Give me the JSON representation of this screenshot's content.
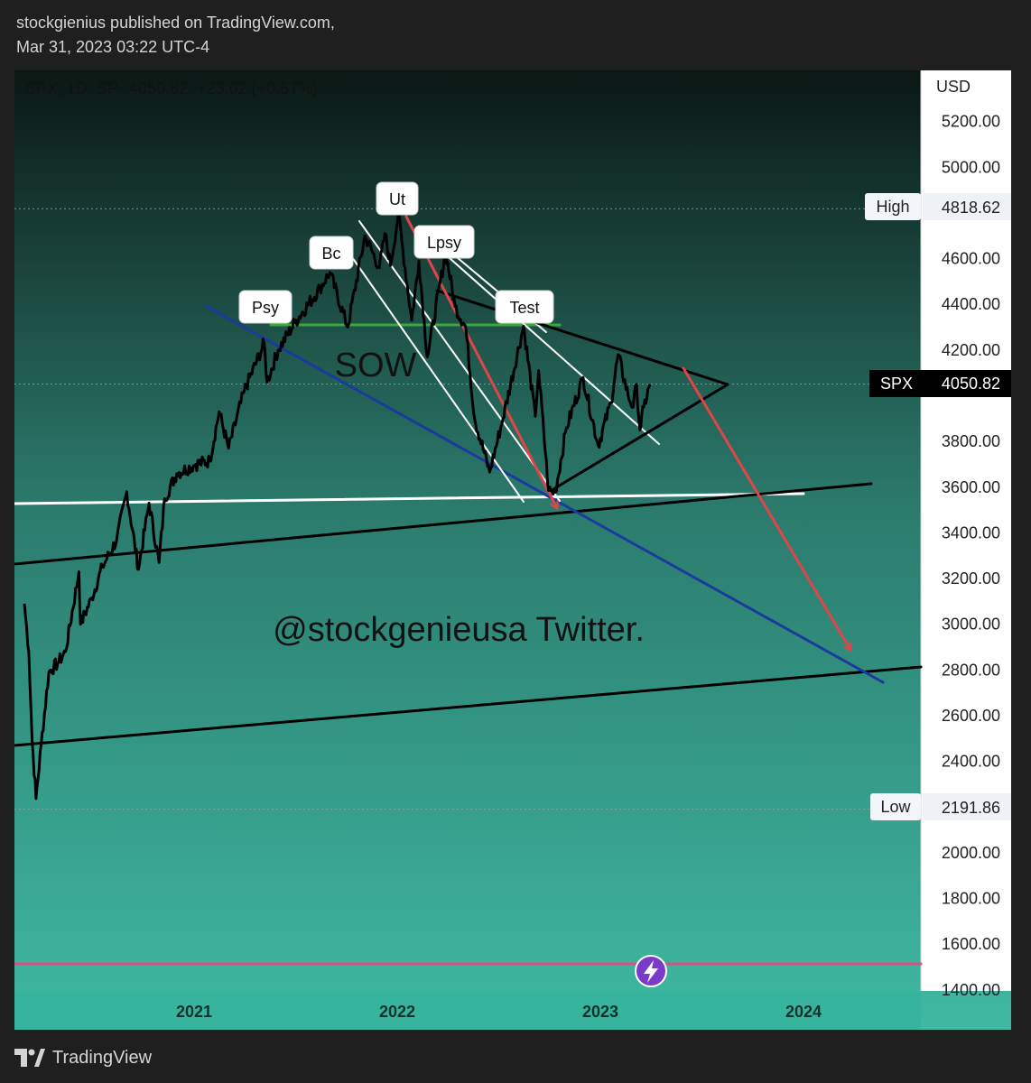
{
  "header": {
    "line1": "stockgienius published on TradingView.com,",
    "line2": "Mar 31, 2023 03:22 UTC-4"
  },
  "symbol_info": {
    "symbol": "SPX, 1D, SP",
    "price": "4050.82",
    "change": "+23.02 (+0.57%)"
  },
  "price_axis": {
    "currency": "USD",
    "ticks": [
      1400,
      1600,
      1800,
      2000,
      2200,
      2400,
      2600,
      2800,
      3000,
      3200,
      3400,
      3600,
      3800,
      4000,
      4200,
      4400,
      4600,
      4800,
      5000,
      5200
    ],
    "tick_labels": [
      "1400.00",
      "1600.00",
      "1800.00",
      "2000.00",
      "",
      "2400.00",
      "2600.00",
      "2800.00",
      "3000.00",
      "3200.00",
      "3400.00",
      "3600.00",
      "3800.00",
      "",
      "4200.00",
      "4400.00",
      "4600.00",
      "",
      "5000.00",
      "5200.00"
    ]
  },
  "time_axis": {
    "labels": [
      "2021",
      "2022",
      "2023",
      "2024"
    ]
  },
  "markers": {
    "high": {
      "label": "High",
      "value": "4818.62"
    },
    "low": {
      "label": "Low",
      "value": "2191.86"
    },
    "last": {
      "label": "SPX",
      "value": "4050.82"
    }
  },
  "annotations": {
    "wyckoff_labels": [
      "Psy",
      "Bc",
      "Ut",
      "Lpsy",
      "Test"
    ],
    "sow": "SOW",
    "watermark": "@stockgenieusa Twitter."
  },
  "footer": {
    "brand": "TradingView"
  },
  "colors": {
    "bg_top": "#0b1714",
    "bg_bottom": "#3fb9a3",
    "price_line": "#000000",
    "blue_line": "#1a3a9c",
    "red_arrow": "#e0454a",
    "green_line": "#3aa83a",
    "pink_line": "#d9507c"
  },
  "chart_data": {
    "type": "line",
    "title": "SPX, 1D, SP",
    "ylabel": "USD",
    "ylim": [
      1400,
      5300
    ],
    "x_range": [
      "2020-03-01",
      "2024-06-01"
    ],
    "series": [
      {
        "name": "SPX",
        "points": [
          [
            "2020-03-02",
            3090
          ],
          [
            "2020-03-10",
            2880
          ],
          [
            "2020-03-16",
            2490
          ],
          [
            "2020-03-23",
            2237
          ],
          [
            "2020-04-01",
            2470
          ],
          [
            "2020-04-15",
            2790
          ],
          [
            "2020-05-01",
            2830
          ],
          [
            "2020-05-15",
            2880
          ],
          [
            "2020-06-08",
            3230
          ],
          [
            "2020-06-11",
            3000
          ],
          [
            "2020-07-01",
            3115
          ],
          [
            "2020-07-20",
            3250
          ],
          [
            "2020-08-15",
            3370
          ],
          [
            "2020-09-02",
            3580
          ],
          [
            "2020-09-23",
            3240
          ],
          [
            "2020-10-12",
            3530
          ],
          [
            "2020-10-30",
            3270
          ],
          [
            "2020-11-09",
            3550
          ],
          [
            "2020-12-01",
            3660
          ],
          [
            "2021-01-04",
            3700
          ],
          [
            "2021-01-29",
            3715
          ],
          [
            "2021-02-15",
            3930
          ],
          [
            "2021-03-04",
            3770
          ],
          [
            "2021-04-01",
            4020
          ],
          [
            "2021-05-07",
            4230
          ],
          [
            "2021-05-12",
            4060
          ],
          [
            "2021-06-01",
            4200
          ],
          [
            "2021-07-01",
            4320
          ],
          [
            "2021-08-15",
            4470
          ],
          [
            "2021-09-02",
            4540
          ],
          [
            "2021-10-04",
            4300
          ],
          [
            "2021-11-04",
            4700
          ],
          [
            "2021-11-30",
            4560
          ],
          [
            "2021-12-10",
            4710
          ],
          [
            "2021-12-20",
            4570
          ],
          [
            "2022-01-03",
            4796
          ],
          [
            "2022-01-27",
            4330
          ],
          [
            "2022-02-09",
            4590
          ],
          [
            "2022-02-24",
            4170
          ],
          [
            "2022-03-29",
            4630
          ],
          [
            "2022-04-15",
            4390
          ],
          [
            "2022-05-04",
            4300
          ],
          [
            "2022-05-20",
            3900
          ],
          [
            "2022-06-16",
            3666
          ],
          [
            "2022-07-10",
            3900
          ],
          [
            "2022-08-16",
            4305
          ],
          [
            "2022-09-06",
            3910
          ],
          [
            "2022-09-12",
            4110
          ],
          [
            "2022-09-30",
            3585
          ],
          [
            "2022-10-12",
            3577
          ],
          [
            "2022-11-01",
            3860
          ],
          [
            "2022-12-01",
            4080
          ],
          [
            "2022-12-28",
            3783
          ],
          [
            "2023-01-20",
            3970
          ],
          [
            "2023-02-02",
            4180
          ],
          [
            "2023-02-20",
            4000
          ],
          [
            "2023-03-01",
            3950
          ],
          [
            "2023-03-07",
            4050
          ],
          [
            "2023-03-13",
            3850
          ],
          [
            "2023-03-20",
            3950
          ],
          [
            "2023-03-31",
            4050
          ]
        ]
      }
    ],
    "high": 4818.62,
    "low": 2191.86,
    "last": 4050.82,
    "grid": false,
    "legend": "none"
  }
}
